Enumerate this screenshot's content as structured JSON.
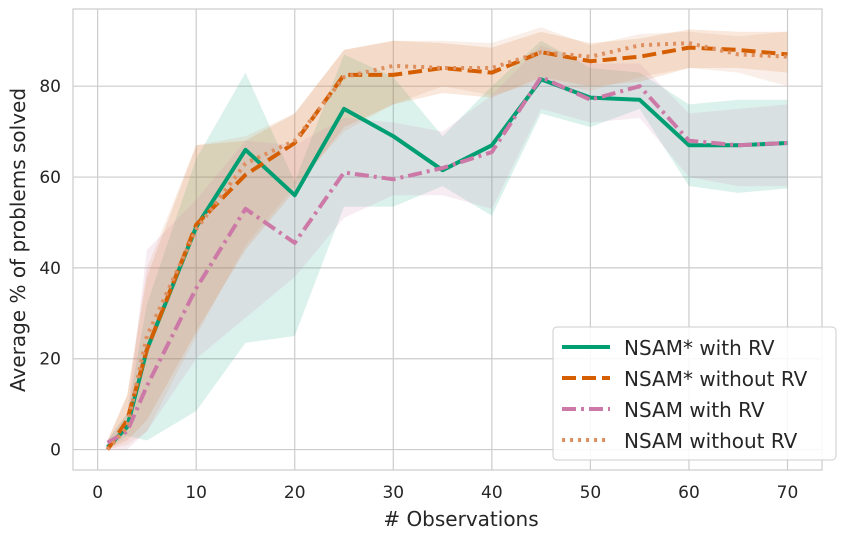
{
  "chart_data": {
    "type": "line",
    "title": "",
    "xlabel": "# Observations",
    "ylabel": "Average % of problems solved",
    "xlim": [
      -2.5,
      73.5
    ],
    "ylim": [
      -4.5,
      97
    ],
    "grid": true,
    "legend_position": "bottom-right",
    "x_ticks": [
      0,
      10,
      20,
      30,
      40,
      50,
      60,
      70
    ],
    "y_ticks": [
      0,
      20,
      40,
      60,
      80
    ],
    "x": [
      1,
      3,
      5,
      10,
      15,
      20,
      25,
      30,
      35,
      40,
      45,
      50,
      55,
      60,
      65,
      70
    ],
    "series": [
      {
        "name": "NSAM* with RV",
        "color": "#009e73",
        "style": "solid",
        "values": [
          0.5,
          5,
          22,
          49,
          66,
          56,
          75,
          69,
          61.5,
          67,
          81.5,
          77.5,
          77,
          67,
          67,
          67.5
        ],
        "lower": [
          0,
          3,
          2,
          8.5,
          23.5,
          25,
          53.5,
          53.5,
          58,
          51.5,
          74,
          71,
          75,
          58,
          56.5,
          57.5
        ],
        "upper": [
          2,
          8,
          32,
          64,
          83,
          59,
          87,
          82,
          69,
          80,
          90,
          84,
          83,
          76,
          77,
          77
        ]
      },
      {
        "name": "NSAM* without RV",
        "color": "#d55e00",
        "style": "dashed",
        "values": [
          0,
          6.5,
          22,
          49.5,
          60.5,
          67.5,
          82.5,
          82.5,
          84,
          83,
          87.5,
          85.5,
          86.5,
          88.5,
          88,
          87
        ],
        "lower": [
          0,
          2,
          6.5,
          26,
          44,
          57,
          71,
          76,
          78.5,
          77.5,
          82,
          80,
          81,
          84,
          84,
          83
        ],
        "upper": [
          2,
          12,
          38,
          67,
          68,
          74,
          88,
          90,
          89.5,
          88.5,
          92,
          89.5,
          90.5,
          92.5,
          92,
          92
        ]
      },
      {
        "name": "NSAM with RV",
        "color": "#cc79a7",
        "style": "dashdot",
        "values": [
          1.5,
          4,
          14,
          35.5,
          53,
          45.5,
          61,
          59.5,
          62,
          65.5,
          82,
          77,
          80,
          68,
          67,
          67.5
        ],
        "lower": [
          0,
          0,
          4,
          20,
          29,
          38,
          51,
          56,
          56,
          53,
          75,
          72,
          73,
          60,
          58,
          58
        ],
        "upper": [
          2,
          8,
          44,
          55,
          68,
          67,
          73,
          72,
          70,
          78,
          89,
          85,
          85,
          74,
          75,
          76
        ]
      },
      {
        "name": "NSAM without RV",
        "color": "#de8f5f",
        "style": "dotted",
        "values": [
          0,
          5,
          25,
          48.5,
          63,
          68,
          82,
          84.5,
          84,
          84,
          87.5,
          86.5,
          89,
          89.5,
          87,
          86.5
        ],
        "lower": [
          0,
          1,
          4,
          25,
          45,
          58,
          70,
          76,
          80,
          78,
          81,
          79,
          82,
          84,
          83,
          80
        ],
        "upper": [
          2,
          12,
          40,
          67,
          69,
          74,
          88,
          90,
          90,
          89.5,
          93,
          89,
          91.5,
          92,
          91,
          92
        ]
      }
    ]
  }
}
